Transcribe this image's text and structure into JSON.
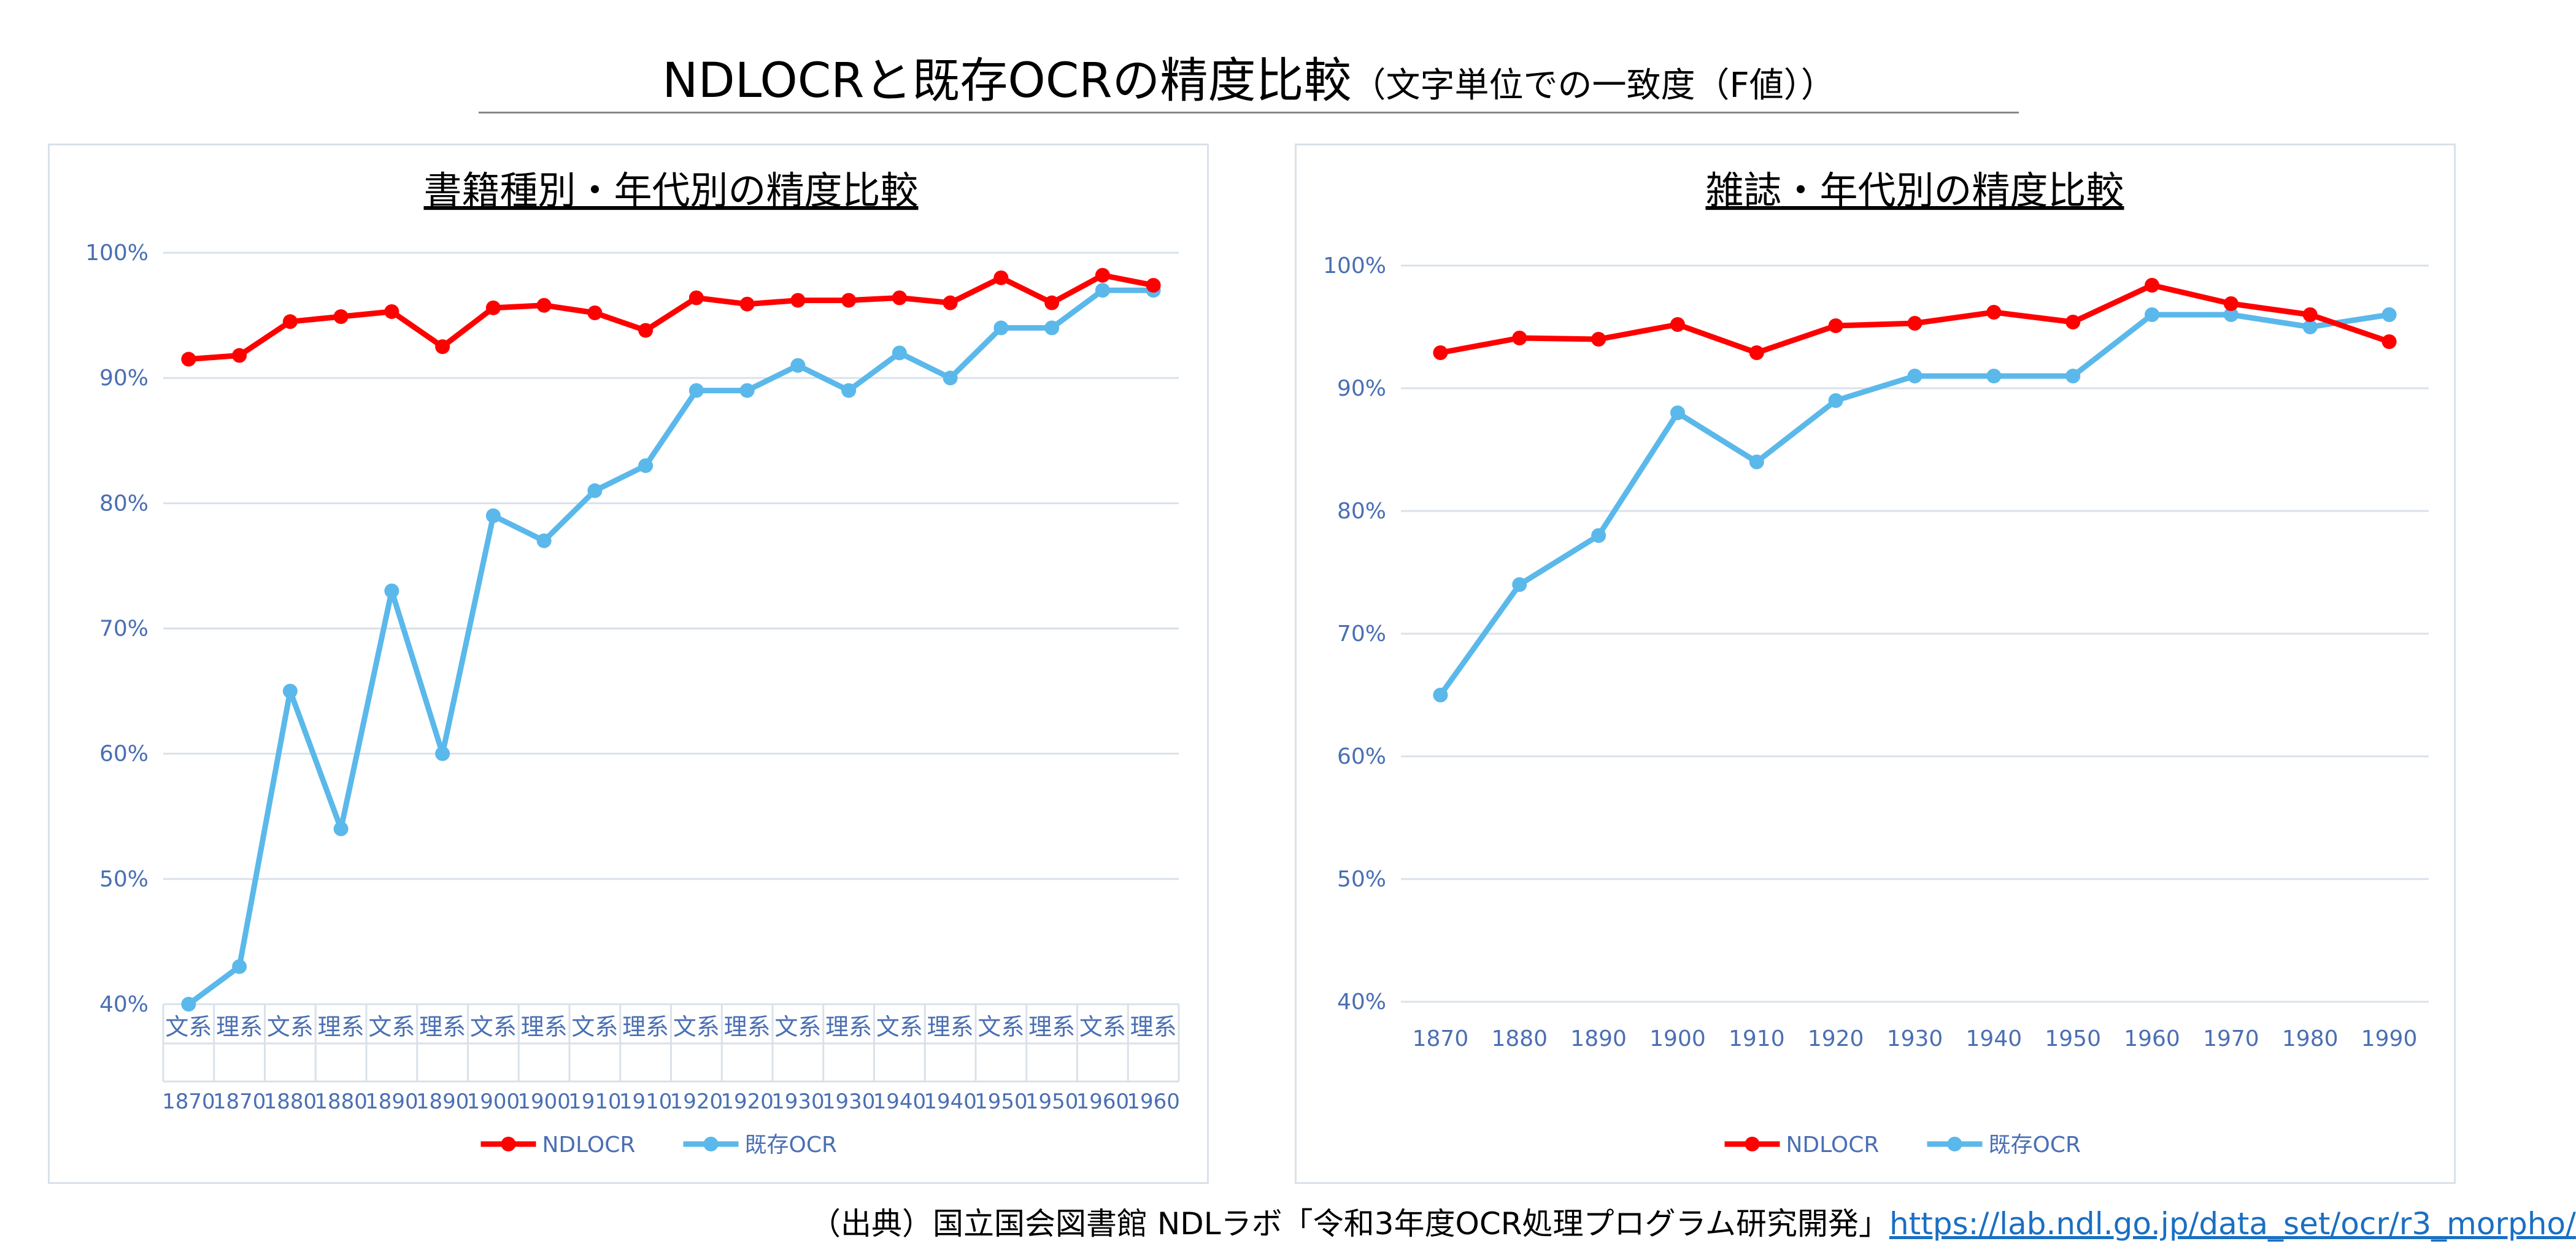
{
  "main_title": "NDLOCRと既存OCRの精度比較",
  "main_subtitle": "（文字単位での一致度（F値））",
  "source": {
    "prefix": "（出典）国立国会図書館 NDLラボ「令和3年度OCR処理プログラム研究開発」",
    "link": "https://lab.ndl.go.jp/data_set/ocr/r3_morpho/"
  },
  "colors": {
    "ndlocr": "#ff0000",
    "existing_ocr": "#5bb8ea",
    "axis_text": "#4a6fb3",
    "grid": "#d9e1ea"
  },
  "chart_data": [
    {
      "type": "line",
      "title": "書籍種別・年代別の精度比較",
      "categories": [
        [
          "文系",
          "1870"
        ],
        [
          "理系",
          "1870"
        ],
        [
          "文系",
          "1880"
        ],
        [
          "理系",
          "1880"
        ],
        [
          "文系",
          "1890"
        ],
        [
          "理系",
          "1890"
        ],
        [
          "文系",
          "1900"
        ],
        [
          "理系",
          "1900"
        ],
        [
          "文系",
          "1910"
        ],
        [
          "理系",
          "1910"
        ],
        [
          "文系",
          "1920"
        ],
        [
          "理系",
          "1920"
        ],
        [
          "文系",
          "1930"
        ],
        [
          "理系",
          "1930"
        ],
        [
          "文系",
          "1940"
        ],
        [
          "理系",
          "1940"
        ],
        [
          "文系",
          "1950"
        ],
        [
          "理系",
          "1950"
        ],
        [
          "文系",
          "1960"
        ],
        [
          "理系",
          "1960"
        ]
      ],
      "ylim": [
        40,
        100
      ],
      "yticks": [
        40,
        50,
        60,
        70,
        80,
        90,
        100
      ],
      "ytick_labels": [
        "40%",
        "50%",
        "60%",
        "70%",
        "80%",
        "90%",
        "100%"
      ],
      "grid": true,
      "legend": "bottom",
      "series": [
        {
          "name": "NDLOCR",
          "values": [
            91.5,
            91.8,
            94.5,
            94.9,
            95.3,
            92.5,
            95.6,
            95.8,
            95.2,
            93.8,
            96.4,
            95.9,
            96.2,
            96.2,
            96.4,
            96.0,
            98.0,
            96.0,
            98.2,
            97.4
          ]
        },
        {
          "name": "既存OCR",
          "values": [
            40,
            43,
            65,
            54,
            73,
            60,
            79,
            77,
            81,
            83,
            89,
            89,
            91,
            89,
            92,
            90,
            94,
            94,
            97,
            97
          ]
        }
      ]
    },
    {
      "type": "line",
      "title": "雑誌・年代別の精度比較",
      "categories": [
        "1870",
        "1880",
        "1890",
        "1900",
        "1910",
        "1920",
        "1930",
        "1940",
        "1950",
        "1960",
        "1970",
        "1980",
        "1990"
      ],
      "ylim": [
        40,
        100
      ],
      "yticks": [
        40,
        50,
        60,
        70,
        80,
        90,
        100
      ],
      "ytick_labels": [
        "40%",
        "50%",
        "60%",
        "70%",
        "80%",
        "90%",
        "100%"
      ],
      "grid": true,
      "legend": "bottom",
      "series": [
        {
          "name": "NDLOCR",
          "values": [
            92.9,
            94.1,
            94.0,
            95.2,
            92.9,
            95.1,
            95.3,
            96.2,
            95.4,
            98.4,
            96.9,
            96.0,
            93.8
          ]
        },
        {
          "name": "既存OCR",
          "values": [
            65,
            74,
            78,
            88,
            84,
            89,
            91,
            91,
            91,
            96,
            96,
            95,
            96
          ]
        }
      ]
    }
  ]
}
